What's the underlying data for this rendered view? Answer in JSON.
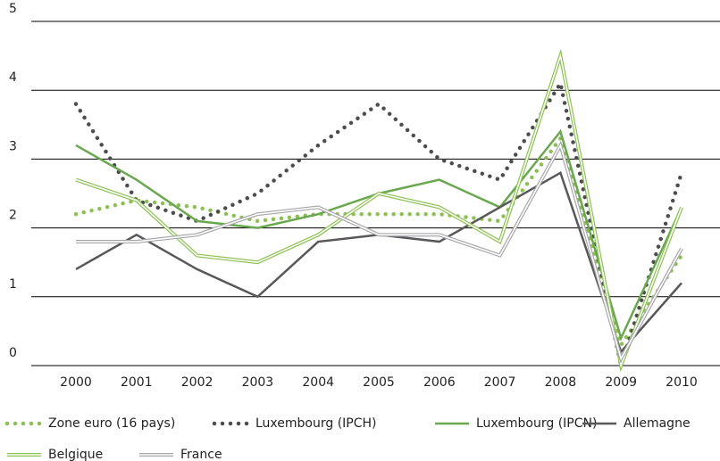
{
  "chart_data": {
    "type": "line",
    "categories": [
      "2000",
      "2001",
      "2002",
      "2003",
      "2004",
      "2005",
      "2006",
      "2007",
      "2008",
      "2009",
      "2010"
    ],
    "ylim": [
      0,
      5
    ],
    "yticks": [
      0,
      1,
      2,
      3,
      4,
      5
    ],
    "grid": true,
    "legend": "bottom",
    "series": [
      {
        "name": "Zone euro (16 pays)",
        "color": "#8cc152",
        "style": "dotted",
        "values": [
          2.2,
          2.4,
          2.3,
          2.1,
          2.2,
          2.2,
          2.2,
          2.1,
          3.3,
          0.3,
          1.6
        ]
      },
      {
        "name": "Luxembourg (IPCH)",
        "color": "#4d4d4f",
        "style": "dotted",
        "values": [
          3.8,
          2.4,
          2.1,
          2.5,
          3.2,
          3.8,
          3.0,
          2.7,
          4.1,
          0.0,
          2.8
        ]
      },
      {
        "name": "Luxembourg (IPCN)",
        "color": "#6aa84f",
        "style": "solid",
        "values": [
          3.2,
          2.7,
          2.1,
          2.0,
          2.2,
          2.5,
          2.7,
          2.3,
          3.4,
          0.4,
          2.3
        ]
      },
      {
        "name": "Allemagne",
        "color": "#58585a",
        "style": "solid",
        "values": [
          1.4,
          1.9,
          1.4,
          1.0,
          1.8,
          1.9,
          1.8,
          2.3,
          2.8,
          0.2,
          1.2
        ]
      },
      {
        "name": "Belgique",
        "color": "#8cc152",
        "style": "double",
        "values": [
          2.7,
          2.4,
          1.6,
          1.5,
          1.9,
          2.5,
          2.3,
          1.8,
          4.5,
          0.0,
          2.3
        ]
      },
      {
        "name": "France",
        "color": "#a7a7aa",
        "style": "double",
        "values": [
          1.8,
          1.8,
          1.9,
          2.2,
          2.3,
          1.9,
          1.9,
          1.6,
          3.2,
          0.1,
          1.7
        ]
      }
    ]
  }
}
